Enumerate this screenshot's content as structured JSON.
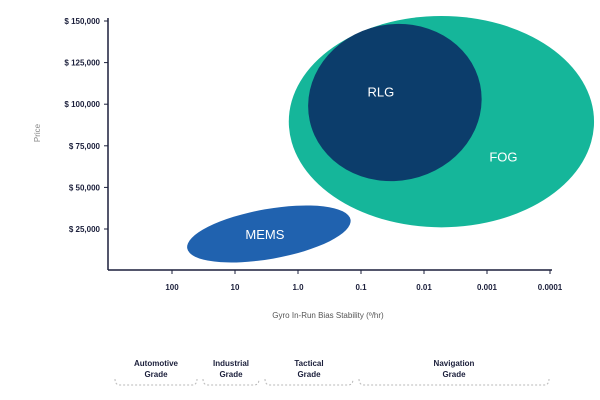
{
  "chart_data": {
    "type": "scatter",
    "title": "",
    "xlabel": "Gyro In-Run Bias Stability (º/hr)",
    "ylabel": "Price",
    "x_scale": "log-reversed",
    "x_ticks": [
      "100",
      "10",
      "1.0",
      "0.1",
      "0.01",
      "0.001",
      "0.0001"
    ],
    "y_ticks": [
      "$ 25,000",
      "$ 50,000",
      "$ 75,000",
      "$ 100,000",
      "$ 125,000",
      "$ 150,000"
    ],
    "xlim": [
      1000,
      3e-05
    ],
    "ylim": [
      0,
      150000
    ],
    "grid": false,
    "series": [
      {
        "name": "MEMS",
        "x_range": [
          60,
          0.14
        ],
        "y_range": [
          7000,
          37000
        ],
        "color": "#0d55a8"
      },
      {
        "name": "FOG",
        "x_range": [
          1.4,
          2e-05
        ],
        "y_range": [
          26000,
          153000
        ],
        "color": "#15b69a"
      },
      {
        "name": "RLG",
        "x_range": [
          0.7,
          0.0012
        ],
        "y_range": [
          54000,
          148000
        ],
        "color": "#0c3d6b"
      }
    ],
    "grades": [
      {
        "label_line1": "Automotive",
        "label_line2": "Grade",
        "x_range": [
          1000,
          30
        ]
      },
      {
        "label_line1": "Industrial",
        "label_line2": "Grade",
        "x_range": [
          30,
          3
        ]
      },
      {
        "label_line1": "Tactical",
        "label_line2": "Grade",
        "x_range": [
          3,
          0.1
        ]
      },
      {
        "label_line1": "Navigation",
        "label_line2": "Grade",
        "x_range": [
          0.1,
          3e-05
        ]
      }
    ]
  }
}
